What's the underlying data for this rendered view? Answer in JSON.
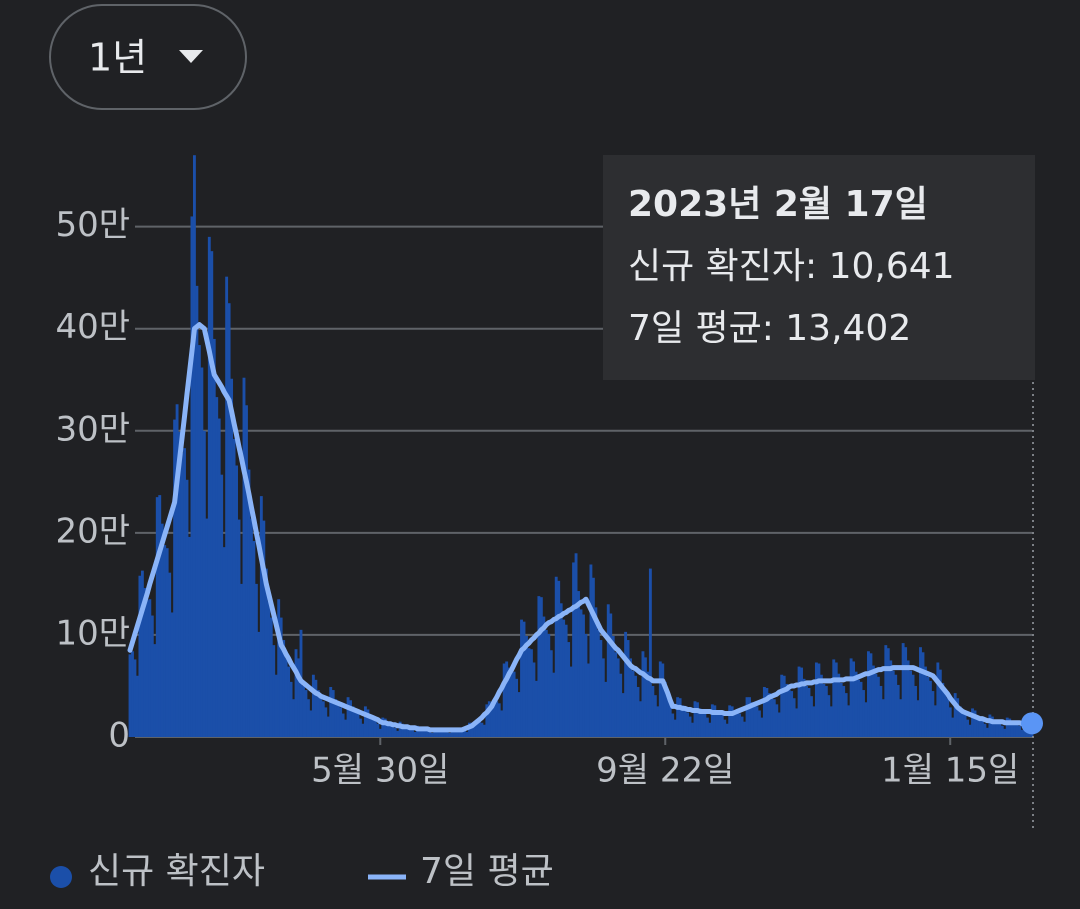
{
  "range_selector": "1년",
  "chart_data": {
    "type": "bar",
    "tooltip": {
      "title": "2023년 2월 17일",
      "lines": [
        "신규 확진자: 10,641",
        "7일 평균: 13,402"
      ]
    },
    "categories": [
      null,
      null,
      null,
      null,
      null,
      null,
      null,
      null,
      null,
      null,
      null,
      null,
      null,
      null,
      null,
      null,
      null,
      null,
      null,
      null,
      null,
      null,
      null,
      null,
      null,
      null,
      null,
      null,
      null,
      null,
      null,
      null,
      null,
      null,
      null,
      null,
      null,
      null,
      null,
      null,
      null,
      null,
      null,
      null,
      null,
      null,
      null,
      null,
      null,
      null,
      null,
      null,
      null,
      null,
      null,
      null,
      null,
      null,
      null,
      null,
      null,
      null,
      null,
      null,
      null,
      null,
      null,
      null,
      null,
      null,
      null,
      null,
      null,
      null,
      null,
      null,
      null,
      null,
      null,
      null,
      null,
      null,
      null,
      null,
      null,
      null,
      null,
      null,
      null,
      null,
      null,
      null,
      null,
      null,
      null,
      null,
      null,
      null,
      null,
      null,
      null,
      "5월 30일",
      null,
      null,
      null,
      null,
      null,
      null,
      null,
      null,
      null,
      null,
      null,
      null,
      null,
      null,
      null,
      null,
      null,
      null,
      null,
      null,
      null,
      null,
      null,
      null,
      null,
      null,
      null,
      null,
      null,
      null,
      null,
      null,
      null,
      null,
      null,
      null,
      null,
      null,
      null,
      null,
      null,
      null,
      null,
      null,
      null,
      null,
      null,
      null,
      null,
      null,
      null,
      null,
      null,
      null,
      null,
      null,
      null,
      null,
      null,
      null,
      null,
      null,
      null,
      null,
      null,
      null,
      null,
      null,
      null,
      null,
      null,
      null,
      null,
      null,
      null,
      null,
      null,
      null,
      null,
      null,
      null,
      null,
      null,
      null,
      null,
      null,
      null,
      null,
      null,
      null,
      null,
      null,
      null,
      null,
      null,
      null,
      null,
      null,
      null,
      null,
      null,
      null,
      null,
      null,
      null,
      null,
      null,
      null,
      null,
      null,
      null,
      null,
      null,
      null,
      "9월 22일",
      null,
      null,
      null,
      null,
      null,
      null,
      null,
      null,
      null,
      null,
      null,
      null,
      null,
      null,
      null,
      null,
      null,
      null,
      null,
      null,
      null,
      null,
      null,
      null,
      null,
      null,
      null,
      null,
      null,
      null,
      null,
      null,
      null,
      null,
      null,
      null,
      null,
      null,
      null,
      null,
      null,
      null,
      null,
      null,
      null,
      null,
      null,
      null,
      null,
      null,
      null,
      null,
      null,
      null,
      null,
      null,
      null,
      null,
      null,
      null,
      null,
      null,
      null,
      null,
      null,
      null,
      null,
      null,
      null,
      null,
      null,
      null,
      null,
      null,
      null,
      null,
      null,
      null,
      null,
      null,
      null,
      null,
      null,
      null,
      null,
      null,
      null,
      null,
      null,
      null,
      null,
      null,
      null,
      null,
      null,
      null,
      null,
      null,
      null,
      null,
      null,
      null,
      null,
      null,
      null,
      null,
      null,
      null,
      null,
      null,
      null,
      null,
      null,
      null,
      "1월 15일",
      null,
      null,
      null,
      null,
      null,
      null,
      null,
      null,
      null,
      null,
      null,
      null,
      null,
      null,
      null,
      null,
      null,
      null,
      null,
      null,
      null,
      null,
      null,
      null,
      null,
      null,
      null,
      null,
      null,
      null,
      null,
      null,
      null
    ],
    "series": [
      {
        "name": "신규 확진자",
        "type": "bar",
        "color": "#1b4fa9",
        "values": [
          81000,
          84000,
          76000,
          60000,
          158000,
          163000,
          146000,
          134000,
          135000,
          119000,
          91000,
          235000,
          237000,
          209000,
          188000,
          185000,
          161000,
          122000,
          311000,
          326000,
          299000,
          278000,
          283000,
          252000,
          196000,
          510000,
          570000,
          442000,
          384000,
          362000,
          300000,
          214000,
          490000,
          476000,
          390000,
          333000,
          312000,
          257000,
          186000,
          451000,
          425000,
          351000,
          292000,
          266000,
          213000,
          150000,
          352000,
          325000,
          262000,
          214000,
          192000,
          150000,
          103000,
          236000,
          212000,
          165000,
          133000,
          117000,
          90000,
          61000,
          135000,
          117000,
          95000,
          77000,
          69000,
          54000,
          37000,
          86000,
          77000,
          105000,
          50000,
          46000,
          37000,
          26000,
          61000,
          56000,
          46000,
          38000,
          35000,
          29000,
          20000,
          49000,
          46000,
          37000,
          31000,
          29000,
          23000,
          17000,
          39000,
          36000,
          30000,
          25000,
          23000,
          18000,
          13000,
          30000,
          27000,
          22000,
          18000,
          16000,
          13000,
          8000,
          19000,
          18000,
          14000,
          12000,
          11000,
          9000,
          6000,
          15000,
          13000,
          11000,
          10000,
          8000,
          7000,
          5000,
          11000,
          10000,
          9000,
          8000,
          7000,
          5000,
          4000,
          9000,
          9000,
          8000,
          7000,
          6000,
          5000,
          4000,
          9000,
          9000,
          8000,
          7000,
          6000,
          6000,
          5000,
          14000,
          14000,
          14000,
          14000,
          15000,
          14000,
          12000,
          32000,
          35000,
          33000,
          33000,
          35000,
          33000,
          26000,
          72000,
          74000,
          68000,
          63000,
          64000,
          57000,
          44000,
          115000,
          113000,
          99000,
          87000,
          86000,
          73000,
          55000,
          138000,
          137000,
          118000,
          105000,
          101000,
          85000,
          63000,
          157000,
          153000,
          131000,
          115000,
          110000,
          93000,
          69000,
          171000,
          180000,
          143000,
          125000,
          120000,
          101000,
          72000,
          169000,
          156000,
          127000,
          105000,
          95000,
          77000,
          54000,
          130000,
          121000,
          99000,
          83000,
          77000,
          62000,
          43000,
          103000,
          95000,
          77000,
          65000,
          60000,
          49000,
          35000,
          84000,
          78000,
          64000,
          165000,
          50000,
          41000,
          30000,
          74000,
          72000,
          54000,
          41000,
          32000,
          23000,
          17000,
          39000,
          38000,
          31000,
          27000,
          24000,
          20000,
          14000,
          35000,
          34000,
          28000,
          24000,
          23000,
          19000,
          14000,
          32000,
          31000,
          26000,
          23000,
          22000,
          17000,
          13000,
          31000,
          30000,
          26000,
          24000,
          23000,
          20000,
          15000,
          39000,
          39000,
          34000,
          30000,
          30000,
          26000,
          19000,
          49000,
          48000,
          43000,
          38000,
          37000,
          32000,
          24000,
          61000,
          60000,
          52000,
          47000,
          45000,
          38000,
          28000,
          69000,
          68000,
          57000,
          50000,
          48000,
          40000,
          30000,
          73000,
          72000,
          61000,
          52000,
          50000,
          41000,
          30000,
          76000,
          73000,
          62000,
          53000,
          50000,
          43000,
          31000,
          77000,
          74000,
          64000,
          56000,
          54000,
          46000,
          34000,
          84000,
          82000,
          70000,
          62000,
          59000,
          50000,
          37000,
          90000,
          87000,
          75000,
          65000,
          61000,
          51000,
          37000,
          92000,
          88000,
          75000,
          65000,
          61000,
          50000,
          36000,
          88000,
          83000,
          69000,
          59000,
          55000,
          45000,
          31000,
          73000,
          66000,
          53000,
          43000,
          38000,
          29000,
          19000,
          43000,
          38000,
          30000,
          24000,
          22000,
          17000,
          12000,
          28000,
          26000,
          21000,
          17000,
          16000,
          13000,
          9000,
          22000,
          20000,
          17000,
          14000,
          14000,
          11000,
          8000,
          19000,
          18000,
          15000,
          13000,
          13000,
          11000,
          7000,
          18000,
          17000,
          14000,
          10641
        ]
      },
      {
        "name": "7일 평균",
        "type": "line",
        "color": "#8ab4f8",
        "highlight_color": "#5a95f5",
        "values": [
          85000,
          93000,
          101000,
          109000,
          117000,
          125000,
          133000,
          141000,
          150000,
          158000,
          166000,
          174000,
          182000,
          190000,
          198000,
          206000,
          214000,
          222000,
          230000,
          251000,
          272000,
          293000,
          314000,
          336000,
          357000,
          378000,
          400000,
          402000,
          404000,
          402000,
          400000,
          389000,
          378000,
          366000,
          355000,
          351000,
          347000,
          343000,
          338000,
          334000,
          330000,
          319000,
          307000,
          296000,
          284000,
          273000,
          261000,
          250000,
          238000,
          225000,
          213000,
          200000,
          188000,
          175000,
          163000,
          150000,
          140000,
          130000,
          120000,
          110000,
          100000,
          90000,
          86000,
          81000,
          77000,
          72000,
          68000,
          64000,
          59000,
          55000,
          53000,
          51000,
          49000,
          47000,
          45000,
          43000,
          42000,
          40000,
          39000,
          38000,
          37000,
          36000,
          35000,
          34000,
          33000,
          32000,
          31000,
          30000,
          29000,
          28000,
          27000,
          26000,
          25000,
          24000,
          23000,
          22000,
          21000,
          20000,
          19000,
          18000,
          17000,
          15000,
          14000,
          14000,
          13000,
          13000,
          12000,
          12000,
          11000,
          11000,
          10000,
          10000,
          10000,
          9000,
          9000,
          9000,
          8000,
          8000,
          8000,
          8000,
          8000,
          7000,
          7000,
          7000,
          7000,
          7000,
          7000,
          7000,
          7000,
          7000,
          7000,
          7000,
          7000,
          7000,
          7000,
          8000,
          9000,
          10000,
          11000,
          13000,
          15000,
          17000,
          19000,
          22000,
          24000,
          27000,
          30000,
          35000,
          39000,
          44000,
          48000,
          53000,
          57000,
          62000,
          66000,
          71000,
          76000,
          80000,
          85000,
          87000,
          90000,
          92000,
          95000,
          97000,
          100000,
          102000,
          105000,
          107000,
          110000,
          112000,
          113000,
          115000,
          116000,
          118000,
          119000,
          121000,
          122000,
          124000,
          125000,
          127000,
          128000,
          130000,
          132000,
          133000,
          135000,
          130000,
          125000,
          120000,
          115000,
          110000,
          105000,
          102000,
          99000,
          96000,
          93000,
          90000,
          87000,
          85000,
          82000,
          79000,
          76000,
          73000,
          70000,
          68000,
          67000,
          65000,
          63000,
          62000,
          60000,
          58000,
          57000,
          55000,
          55000,
          55000,
          55000,
          55000,
          49000,
          43000,
          36000,
          30000,
          30000,
          29000,
          29000,
          28000,
          28000,
          27000,
          27000,
          26000,
          26000,
          26000,
          25000,
          25000,
          25000,
          25000,
          25000,
          24000,
          24000,
          24000,
          24000,
          24000,
          23000,
          23000,
          23000,
          23000,
          24000,
          25000,
          26000,
          27000,
          28000,
          29000,
          30000,
          31000,
          32000,
          33000,
          34000,
          35000,
          36000,
          37000,
          39000,
          40000,
          41000,
          42000,
          44000,
          45000,
          46000,
          47000,
          49000,
          50000,
          50000,
          51000,
          51000,
          52000,
          52000,
          53000,
          53000,
          53000,
          54000,
          54000,
          55000,
          55000,
          55000,
          55000,
          55000,
          55000,
          56000,
          56000,
          56000,
          56000,
          56000,
          57000,
          57000,
          57000,
          57000,
          58000,
          59000,
          60000,
          61000,
          62000,
          62000,
          63000,
          64000,
          65000,
          66000,
          66000,
          67000,
          67000,
          67000,
          67000,
          68000,
          68000,
          68000,
          68000,
          68000,
          68000,
          68000,
          68000,
          68000,
          67000,
          66000,
          65000,
          64000,
          63000,
          62000,
          61000,
          60000,
          57000,
          54000,
          51000,
          48000,
          45000,
          42000,
          38000,
          35000,
          32000,
          29000,
          27000,
          25000,
          24000,
          23000,
          22000,
          21000,
          20000,
          19000,
          18000,
          18000,
          17000,
          16000,
          16000,
          15000,
          15000,
          15000,
          15000,
          15000,
          14000,
          14000,
          14000,
          14000,
          14000,
          14000,
          14000,
          13000,
          13000,
          13000,
          13000,
          13402
        ]
      }
    ],
    "ylim": [
      0,
      580000
    ],
    "yticks": [
      0,
      {
        "value": 100000,
        "label": "10만"
      },
      {
        "value": 200000,
        "label": "20만"
      },
      {
        "value": 300000,
        "label": "30만"
      },
      {
        "value": 400000,
        "label": "40만"
      },
      {
        "value": 500000,
        "label": "50만"
      }
    ],
    "grid": true
  }
}
